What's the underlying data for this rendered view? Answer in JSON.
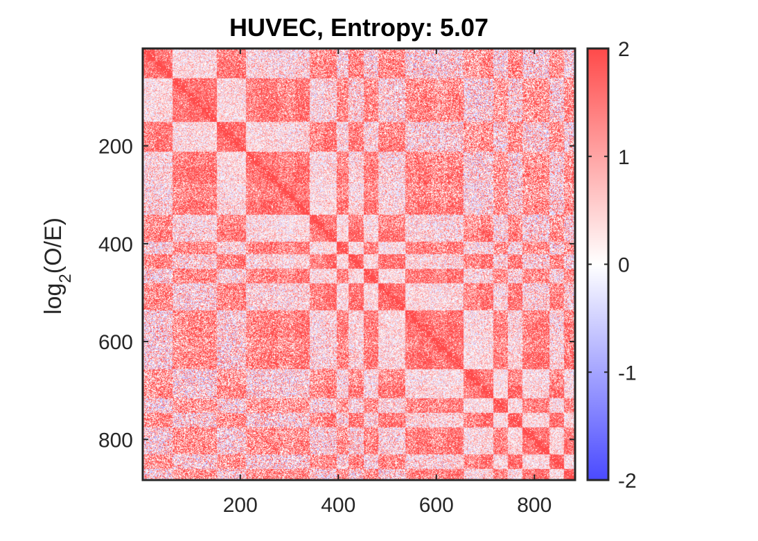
{
  "chart_data": {
    "type": "heatmap",
    "title": "HUVEC, Entropy: 5.07",
    "ylabel": {
      "base": "log",
      "subscript": "2",
      "rest": "(O/E)"
    },
    "xlim": [
      1,
      883
    ],
    "ylim": [
      1,
      883
    ],
    "xticks": [
      200,
      400,
      600,
      800
    ],
    "yticks": [
      200,
      400,
      600,
      800
    ],
    "y_reversed": true,
    "colorbar": {
      "ticks": [
        -2,
        -1,
        0,
        1,
        2
      ],
      "tick_labels": [
        "-2",
        "-1",
        "0",
        "1",
        "2"
      ],
      "clim": [
        -2,
        2
      ],
      "colormap": {
        "low": "#4a4aff",
        "mid": "#ffffff",
        "high": "#ff4a4a"
      }
    },
    "domains": [
      [
        0,
        25
      ],
      [
        25,
        60
      ],
      [
        60,
        90
      ],
      [
        90,
        120
      ],
      [
        120,
        150
      ],
      [
        150,
        185
      ],
      [
        185,
        210
      ],
      [
        210,
        240
      ],
      [
        240,
        275
      ],
      [
        275,
        310
      ],
      [
        310,
        340
      ],
      [
        340,
        370
      ],
      [
        370,
        395
      ],
      [
        395,
        420
      ],
      [
        420,
        450
      ],
      [
        450,
        480
      ],
      [
        480,
        505
      ],
      [
        505,
        535
      ],
      [
        535,
        560
      ],
      [
        560,
        590
      ],
      [
        590,
        620
      ],
      [
        620,
        655
      ],
      [
        655,
        690
      ],
      [
        690,
        715
      ],
      [
        715,
        745
      ],
      [
        745,
        775
      ],
      [
        775,
        800
      ],
      [
        800,
        830
      ],
      [
        830,
        860
      ],
      [
        860,
        883
      ]
    ],
    "grid": false
  }
}
